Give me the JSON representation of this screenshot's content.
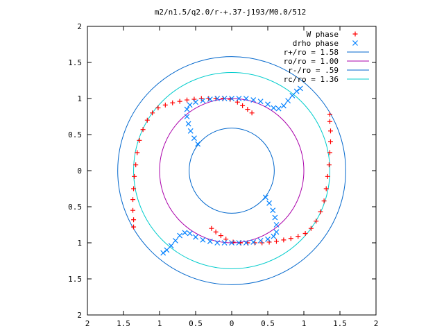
{
  "chart_data": {
    "type": "scatter",
    "title": "m2/n1.5/q2.0/r-+.37-j193/M0.0/512",
    "xlim": [
      -2,
      2
    ],
    "ylim": [
      -2,
      2
    ],
    "xticks": [
      -2,
      -1.5,
      -1,
      -0.5,
      0,
      0.5,
      1,
      1.5,
      2
    ],
    "yticks": [
      -2,
      -1.5,
      -1,
      -0.5,
      0,
      0.5,
      1,
      1.5,
      2
    ],
    "xtick_labels": [
      "2",
      "1.5",
      "1",
      "0.5",
      "0",
      "0.5",
      "1",
      "1.5",
      "2"
    ],
    "ytick_labels": [
      "2",
      "1.5",
      "1",
      "0.5",
      "0",
      "0.5",
      "1",
      "1.5",
      "2"
    ],
    "legend_position": "top-right",
    "grid": false,
    "series": [
      {
        "name": "W phase",
        "marker": "plus",
        "color": "#ff0000",
        "points": [
          [
            0.28,
            0.8
          ],
          [
            0.22,
            0.85
          ],
          [
            0.15,
            0.9
          ],
          [
            0.08,
            0.95
          ],
          [
            -0.02,
            0.99
          ],
          [
            -0.12,
            1.0
          ],
          [
            -0.22,
            1.0
          ],
          [
            -0.32,
            1.0
          ],
          [
            -0.42,
            1.0
          ],
          [
            -0.52,
            0.99
          ],
          [
            -0.62,
            0.98
          ],
          [
            -0.72,
            0.96
          ],
          [
            -0.82,
            0.94
          ],
          [
            -0.92,
            0.91
          ],
          [
            -1.02,
            0.87
          ],
          [
            -1.1,
            0.8
          ],
          [
            -1.17,
            0.7
          ],
          [
            -1.23,
            0.57
          ],
          [
            -1.28,
            0.42
          ],
          [
            -1.31,
            0.25
          ],
          [
            -1.33,
            0.08
          ],
          [
            -1.35,
            -0.08
          ],
          [
            -1.36,
            -0.25
          ],
          [
            -1.37,
            -0.4
          ],
          [
            -1.37,
            -0.55
          ],
          [
            -1.36,
            -0.68
          ],
          [
            -1.36,
            -0.78
          ],
          [
            -0.28,
            -0.8
          ],
          [
            -0.22,
            -0.85
          ],
          [
            -0.15,
            -0.9
          ],
          [
            -0.08,
            -0.95
          ],
          [
            0.02,
            -0.99
          ],
          [
            0.12,
            -1.0
          ],
          [
            0.22,
            -1.0
          ],
          [
            0.32,
            -1.0
          ],
          [
            0.42,
            -1.0
          ],
          [
            0.52,
            -0.99
          ],
          [
            0.62,
            -0.98
          ],
          [
            0.72,
            -0.96
          ],
          [
            0.82,
            -0.94
          ],
          [
            0.92,
            -0.91
          ],
          [
            1.02,
            -0.87
          ],
          [
            1.1,
            -0.8
          ],
          [
            1.17,
            -0.7
          ],
          [
            1.23,
            -0.57
          ],
          [
            1.28,
            -0.42
          ],
          [
            1.31,
            -0.25
          ],
          [
            1.33,
            -0.08
          ],
          [
            1.35,
            0.08
          ],
          [
            1.36,
            0.25
          ],
          [
            1.37,
            0.4
          ],
          [
            1.37,
            0.55
          ],
          [
            1.36,
            0.68
          ],
          [
            1.36,
            0.78
          ]
        ]
      },
      {
        "name": "drho phase",
        "marker": "cross",
        "color": "#0080ff",
        "points": [
          [
            -0.47,
            0.37
          ],
          [
            -0.52,
            0.45
          ],
          [
            -0.57,
            0.55
          ],
          [
            -0.6,
            0.65
          ],
          [
            -0.62,
            0.75
          ],
          [
            -0.62,
            0.85
          ],
          [
            -0.58,
            0.91
          ],
          [
            -0.5,
            0.95
          ],
          [
            -0.4,
            0.97
          ],
          [
            -0.3,
            0.99
          ],
          [
            -0.2,
            1.0
          ],
          [
            -0.1,
            1.0
          ],
          [
            0.0,
            1.0
          ],
          [
            0.1,
            1.0
          ],
          [
            0.2,
            1.0
          ],
          [
            0.3,
            0.98
          ],
          [
            0.4,
            0.96
          ],
          [
            0.5,
            0.92
          ],
          [
            0.58,
            0.87
          ],
          [
            0.65,
            0.86
          ],
          [
            0.72,
            0.9
          ],
          [
            0.78,
            0.97
          ],
          [
            0.84,
            1.04
          ],
          [
            0.9,
            1.1
          ],
          [
            0.95,
            1.14
          ],
          [
            0.47,
            -0.37
          ],
          [
            0.52,
            -0.45
          ],
          [
            0.57,
            -0.55
          ],
          [
            0.6,
            -0.65
          ],
          [
            0.62,
            -0.75
          ],
          [
            0.62,
            -0.85
          ],
          [
            0.58,
            -0.91
          ],
          [
            0.5,
            -0.95
          ],
          [
            0.4,
            -0.97
          ],
          [
            0.3,
            -0.99
          ],
          [
            0.2,
            -1.0
          ],
          [
            0.1,
            -1.0
          ],
          [
            0.0,
            -1.0
          ],
          [
            -0.1,
            -1.0
          ],
          [
            -0.2,
            -1.0
          ],
          [
            -0.3,
            -0.98
          ],
          [
            -0.4,
            -0.96
          ],
          [
            -0.5,
            -0.92
          ],
          [
            -0.58,
            -0.87
          ],
          [
            -0.65,
            -0.86
          ],
          [
            -0.72,
            -0.9
          ],
          [
            -0.78,
            -0.97
          ],
          [
            -0.84,
            -1.04
          ],
          [
            -0.9,
            -1.1
          ],
          [
            -0.95,
            -1.14
          ]
        ]
      },
      {
        "name": "r+/ro = 1.58",
        "type": "circle",
        "radius": 1.58,
        "color": "#0066cc"
      },
      {
        "name": "ro/ro = 1.00",
        "type": "circle",
        "radius": 1.0,
        "color": "#aa00aa"
      },
      {
        "name": "r-/ro = .59",
        "type": "circle",
        "radius": 0.59,
        "color": "#0066cc"
      },
      {
        "name": "rc/ro = 1.36",
        "type": "circle",
        "radius": 1.36,
        "color": "#00cccc"
      }
    ]
  }
}
